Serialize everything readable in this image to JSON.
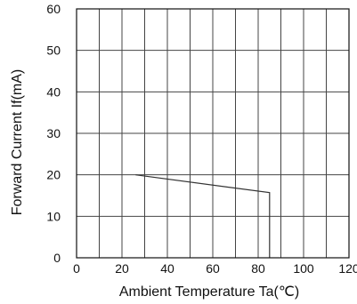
{
  "chart_data": {
    "type": "line",
    "title": "",
    "xlabel": "Ambient Temperature Ta(℃)",
    "ylabel": "Forward Current If(mA)",
    "xlim": [
      0,
      120
    ],
    "ylim": [
      0,
      60
    ],
    "xticks": [
      0,
      20,
      40,
      60,
      80,
      100,
      120
    ],
    "yticks": [
      0,
      10,
      20,
      30,
      40,
      50,
      60
    ],
    "x_tick_labels": [
      "0",
      "20",
      "40",
      "60",
      "80",
      "100",
      "120"
    ],
    "y_tick_labels": [
      "0",
      "10",
      "20",
      "30",
      "40",
      "50",
      "60"
    ],
    "grid": true,
    "series": [
      {
        "x": [
          26,
          85,
          85
        ],
        "y": [
          20,
          15.7,
          0
        ]
      }
    ],
    "colors": {
      "line": "#333333",
      "grid": "#444444",
      "axis": "#111111"
    }
  }
}
